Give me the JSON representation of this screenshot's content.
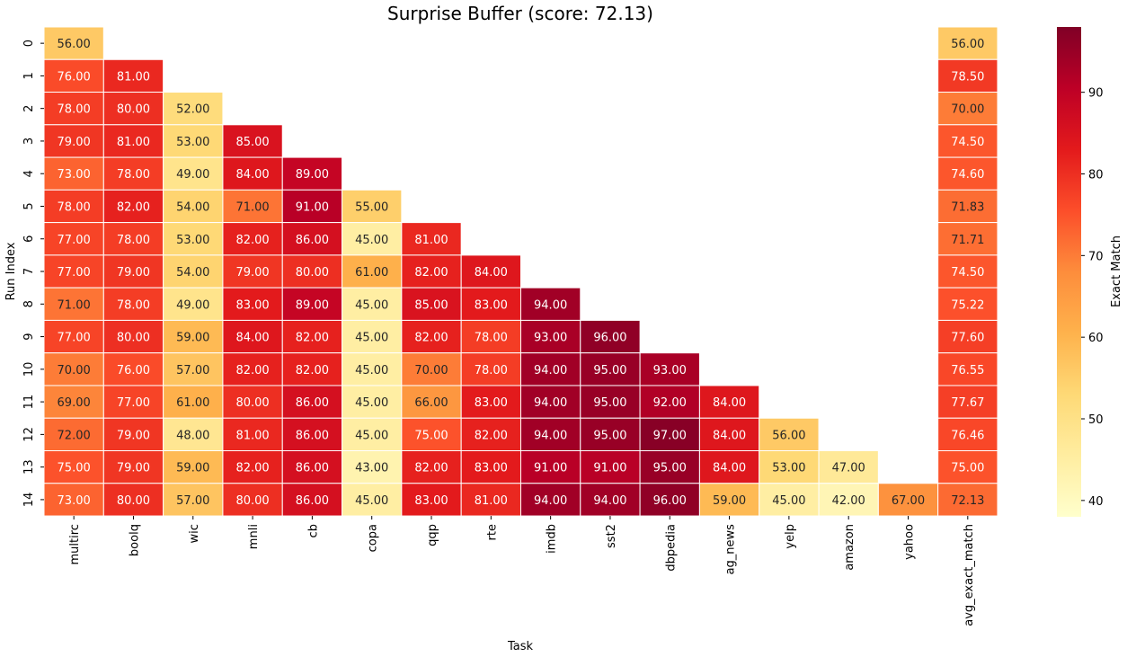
{
  "chart_data": {
    "type": "heatmap",
    "title": "Surprise Buffer (score: 72.13)",
    "xlabel": "Task",
    "ylabel": "Run Index",
    "x_categories": [
      "multirc",
      "boolq",
      "wic",
      "mnli",
      "cb",
      "copa",
      "qqp",
      "rte",
      "imdb",
      "sst2",
      "dbpedia",
      "ag_news",
      "yelp",
      "amazon",
      "yahoo",
      "avg_exact_match"
    ],
    "y_categories": [
      "0",
      "1",
      "2",
      "3",
      "4",
      "5",
      "6",
      "7",
      "8",
      "9",
      "10",
      "11",
      "12",
      "13",
      "14"
    ],
    "values": [
      [
        56,
        null,
        null,
        null,
        null,
        null,
        null,
        null,
        null,
        null,
        null,
        null,
        null,
        null,
        null,
        56.0
      ],
      [
        76,
        81,
        null,
        null,
        null,
        null,
        null,
        null,
        null,
        null,
        null,
        null,
        null,
        null,
        null,
        78.5
      ],
      [
        78,
        80,
        52,
        null,
        null,
        null,
        null,
        null,
        null,
        null,
        null,
        null,
        null,
        null,
        null,
        70.0
      ],
      [
        79,
        81,
        53,
        85,
        null,
        null,
        null,
        null,
        null,
        null,
        null,
        null,
        null,
        null,
        null,
        74.5
      ],
      [
        73,
        78,
        49,
        84,
        89,
        null,
        null,
        null,
        null,
        null,
        null,
        null,
        null,
        null,
        null,
        74.6
      ],
      [
        78,
        82,
        54,
        71,
        91,
        55,
        null,
        null,
        null,
        null,
        null,
        null,
        null,
        null,
        null,
        71.83
      ],
      [
        77,
        78,
        53,
        82,
        86,
        45,
        81,
        null,
        null,
        null,
        null,
        null,
        null,
        null,
        null,
        71.71
      ],
      [
        77,
        79,
        54,
        79,
        80,
        61,
        82,
        84,
        null,
        null,
        null,
        null,
        null,
        null,
        null,
        74.5
      ],
      [
        71,
        78,
        49,
        83,
        89,
        45,
        85,
        83,
        94,
        null,
        null,
        null,
        null,
        null,
        null,
        75.22
      ],
      [
        77,
        80,
        59,
        84,
        82,
        45,
        82,
        78,
        93,
        96,
        null,
        null,
        null,
        null,
        null,
        77.6
      ],
      [
        70,
        76,
        57,
        82,
        82,
        45,
        70,
        78,
        94,
        95,
        93,
        null,
        null,
        null,
        null,
        76.55
      ],
      [
        69,
        77,
        61,
        80,
        86,
        45,
        66,
        83,
        94,
        95,
        92,
        84,
        null,
        null,
        null,
        77.67
      ],
      [
        72,
        79,
        48,
        81,
        86,
        45,
        75,
        82,
        94,
        95,
        97,
        84,
        56,
        null,
        null,
        76.46
      ],
      [
        75,
        79,
        59,
        82,
        86,
        43,
        82,
        83,
        91,
        91,
        95,
        84,
        53,
        47,
        null,
        75.0
      ],
      [
        73,
        80,
        57,
        80,
        86,
        45,
        83,
        81,
        94,
        94,
        96,
        59,
        45,
        42,
        67,
        72.13
      ]
    ],
    "value_format": "0.00",
    "colormap": "YlOrRd",
    "vmin": 38,
    "vmax": 98,
    "colorbar": {
      "label": "Exact Match",
      "ticks": [
        40,
        50,
        60,
        70,
        80,
        90
      ]
    }
  }
}
